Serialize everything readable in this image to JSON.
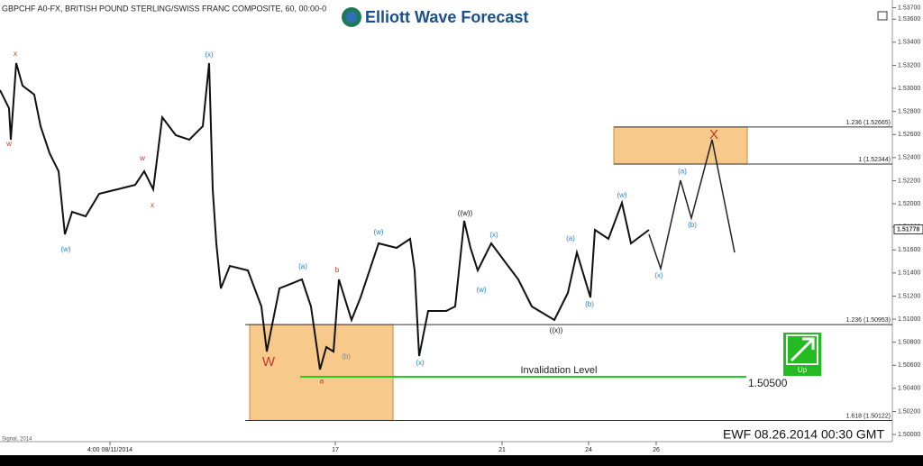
{
  "chart_data": {
    "type": "line",
    "title": "GBPCHF A0-FX, BRITISH POUND STERLING/SWISS FRANC COMPOSITE, 60, 00:00-0",
    "logo": "Elliott Wave Forecast",
    "footer": "EWF 08.26.2014  00:30 GMT",
    "source_note": "Signal, 2014",
    "xlim": [
      0,
      495
    ],
    "ylim": [
      1.49938,
      1.53766
    ],
    "xticks": [
      {
        "value": 61,
        "label": "4:00 08/11/2014"
      },
      {
        "value": 186,
        "label": "17"
      },
      {
        "value": 278.5,
        "label": "21"
      },
      {
        "value": 326.5,
        "label": "24"
      },
      {
        "value": 364,
        "label": "26"
      }
    ],
    "yticks": [
      {
        "value": 1.5,
        "label": "1.50000"
      },
      {
        "value": 1.502,
        "label": "1.50200"
      },
      {
        "value": 1.504,
        "label": "1.50400"
      },
      {
        "value": 1.506,
        "label": "1.50600"
      },
      {
        "value": 1.508,
        "label": "1.50800"
      },
      {
        "value": 1.51,
        "label": "1.51000"
      },
      {
        "value": 1.512,
        "label": "1.51200"
      },
      {
        "value": 1.514,
        "label": "1.51400"
      },
      {
        "value": 1.516,
        "label": "1.51600"
      },
      {
        "value": 1.518,
        "label": "1.51800"
      },
      {
        "value": 1.52,
        "label": "1.52000"
      },
      {
        "value": 1.522,
        "label": "1.52200"
      },
      {
        "value": 1.524,
        "label": "1.52400"
      },
      {
        "value": 1.526,
        "label": "1.52600"
      },
      {
        "value": 1.528,
        "label": "1.52800"
      },
      {
        "value": 1.53,
        "label": "1.53000"
      },
      {
        "value": 1.532,
        "label": "1.53200"
      },
      {
        "value": 1.534,
        "label": "1.53400"
      },
      {
        "value": 1.536,
        "label": "1.53600"
      },
      {
        "value": 1.537,
        "label": "1.53700"
      }
    ],
    "last_price": {
      "value": 1.51778,
      "label": "1.51778"
    },
    "series": [
      {
        "name": "Price",
        "color": "#111111",
        "x": [
          0,
          5,
          6,
          9,
          12.5,
          19,
          22.5,
          27.5,
          32.5,
          36,
          40,
          47.5,
          55,
          65,
          75,
          80,
          85,
          90,
          97.5,
          105,
          112.5,
          116,
          118,
          120,
          122.5,
          127.5,
          137.5,
          145,
          148,
          155,
          167.5,
          172.5,
          177.5,
          181,
          185,
          188,
          195,
          200,
          210,
          220,
          227.5,
          230,
          232.5,
          237.5,
          247.5,
          252.5,
          257.5,
          261,
          265,
          272.5,
          280,
          287.5,
          295,
          307.5,
          315,
          320,
          327.5,
          330,
          337.5,
          345,
          350,
          360
        ],
        "values": [
          1.52985,
          1.52828,
          1.52555,
          1.53219,
          1.53024,
          1.52946,
          1.52672,
          1.52438,
          1.52282,
          1.51735,
          1.5193,
          1.51891,
          1.52086,
          1.52125,
          1.52164,
          1.52282,
          1.52125,
          1.5275,
          1.52594,
          1.52555,
          1.52672,
          1.53219,
          1.52125,
          1.51657,
          1.51266,
          1.51461,
          1.51422,
          1.5111,
          1.50719,
          1.51266,
          1.51344,
          1.5111,
          1.50563,
          1.50758,
          1.50719,
          1.51344,
          1.50993,
          1.51188,
          1.51657,
          1.51618,
          1.51696,
          1.51422,
          1.5068,
          1.51071,
          1.51071,
          1.5111,
          1.51852,
          1.51618,
          1.51422,
          1.51657,
          1.515,
          1.51344,
          1.5111,
          1.50993,
          1.51227,
          1.51578,
          1.51188,
          1.51774,
          1.51696,
          1.52008,
          1.51657,
          1.51774
        ]
      },
      {
        "name": "Projection",
        "color": "#222222",
        "x": [
          360,
          366.5,
          377.5,
          383.5,
          395,
          407.5
        ],
        "values": [
          1.51735,
          1.51438,
          1.52203,
          1.51875,
          1.52555,
          1.51578
        ]
      }
    ],
    "levels": [
      {
        "label": "1.236 (1.52665)",
        "value": 1.52665,
        "from": 340.5,
        "to": 495,
        "color": "#333333"
      },
      {
        "label": "1 (1.52344)",
        "value": 1.52344,
        "from": 340.5,
        "to": 495,
        "color": "#333333"
      },
      {
        "label": "1.236 (1.50953)",
        "value": 1.50953,
        "from": 136,
        "to": 495,
        "color": "#333333"
      },
      {
        "label": "1.618 (1.50122)",
        "value": 1.50122,
        "from": 136,
        "to": 495,
        "color": "#333333"
      },
      {
        "label": "Invalidation Level",
        "value_label": "1.50500",
        "value": 1.505,
        "from": 166.5,
        "to": 414,
        "color": "#22cc22"
      }
    ],
    "zones": [
      {
        "x0": 340.5,
        "x1": 414.5,
        "y0": 1.52344,
        "y1": 1.52665,
        "color": "#f7c98b"
      },
      {
        "x0": 138.5,
        "x1": 218,
        "y0": 1.50122,
        "y1": 1.50953,
        "color": "#f7c98b"
      }
    ],
    "annotations": [
      {
        "text": "x",
        "x": 8.5,
        "y": 1.53297,
        "color": "#c0392b"
      },
      {
        "text": "w",
        "x": 5,
        "y": 1.52516,
        "color": "#c0392b"
      },
      {
        "text": "(w)",
        "x": 36.5,
        "y": 1.51602,
        "color": "#2e86c1"
      },
      {
        "text": "w",
        "x": 79,
        "y": 1.52391,
        "color": "#c0392b"
      },
      {
        "text": "x",
        "x": 84.5,
        "y": 1.51985,
        "color": "#c0392b"
      },
      {
        "text": "(x)",
        "x": 116,
        "y": 1.53289,
        "color": "#2e86c1"
      },
      {
        "text": "(a)",
        "x": 168,
        "y": 1.51454,
        "color": "#2e86c1"
      },
      {
        "text": "b",
        "x": 187,
        "y": 1.51422,
        "color": "#c0392b"
      },
      {
        "text": "W",
        "x": 149,
        "y": 1.50625,
        "color": "#c0392b"
      },
      {
        "text": "(b)",
        "x": 192,
        "y": 1.50672,
        "color": "#888888"
      },
      {
        "text": "a",
        "x": 178.5,
        "y": 1.5046,
        "color": "#c0392b"
      },
      {
        "text": "(w)",
        "x": 210,
        "y": 1.51751,
        "color": "#2e86c1"
      },
      {
        "text": "(x)",
        "x": 233,
        "y": 1.50618,
        "color": "#2e86c1"
      },
      {
        "text": "((w))",
        "x": 258,
        "y": 1.51915,
        "color": "#111111"
      },
      {
        "text": "(x)",
        "x": 274,
        "y": 1.51727,
        "color": "#2e86c1"
      },
      {
        "text": "(w)",
        "x": 267,
        "y": 1.51251,
        "color": "#2e86c1"
      },
      {
        "text": "((x))",
        "x": 308.5,
        "y": 1.50899,
        "color": "#111111"
      },
      {
        "text": "(a)",
        "x": 316.5,
        "y": 1.51696,
        "color": "#2e86c1"
      },
      {
        "text": "(b)",
        "x": 327,
        "y": 1.51125,
        "color": "#2e86c1"
      },
      {
        "text": "(w)",
        "x": 345,
        "y": 1.52071,
        "color": "#2e86c1"
      },
      {
        "text": "(a)",
        "x": 378.5,
        "y": 1.5228,
        "color": "#2e86c1"
      },
      {
        "text": "(b)",
        "x": 384,
        "y": 1.51813,
        "color": "#2e86c1"
      },
      {
        "text": "(x)",
        "x": 365.5,
        "y": 1.51375,
        "color": "#2e86c1"
      },
      {
        "text": "X",
        "x": 396,
        "y": 1.52594,
        "color": "#c0392b"
      }
    ],
    "button": "Up"
  }
}
